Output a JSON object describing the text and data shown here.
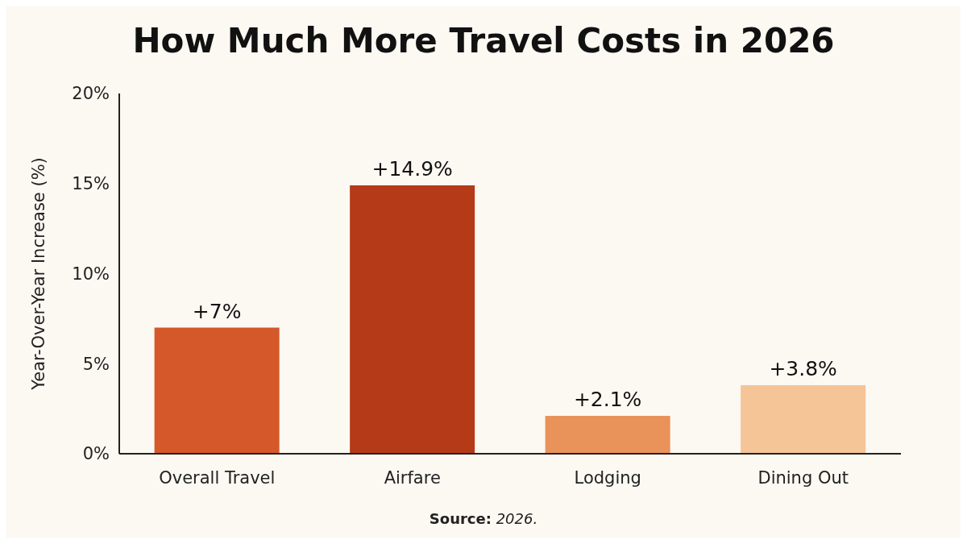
{
  "chart_data": {
    "type": "bar",
    "title": "How Much More Travel Costs in 2026",
    "ylabel": "Year-Over-Year Increase (%)",
    "categories": [
      "Overall Travel",
      "Airfare",
      "Lodging",
      "Dining Out"
    ],
    "values": [
      7,
      14.9,
      2.1,
      3.8
    ],
    "colors": [
      "#d4582a",
      "#b53a17",
      "#e9925a",
      "#f5c497"
    ],
    "value_labels": [
      "+7%",
      "+14.9%",
      "+2.1%",
      "+3.8%"
    ],
    "ylim": [
      0,
      20
    ],
    "yticks": [
      {
        "value": 0,
        "label": "0%"
      },
      {
        "value": 5,
        "label": "5%"
      },
      {
        "value": 10,
        "label": "10%"
      },
      {
        "value": 15,
        "label": "15%"
      },
      {
        "value": 20,
        "label": "20%"
      }
    ],
    "grid": false,
    "annotations": [
      "Source: 2026."
    ]
  }
}
